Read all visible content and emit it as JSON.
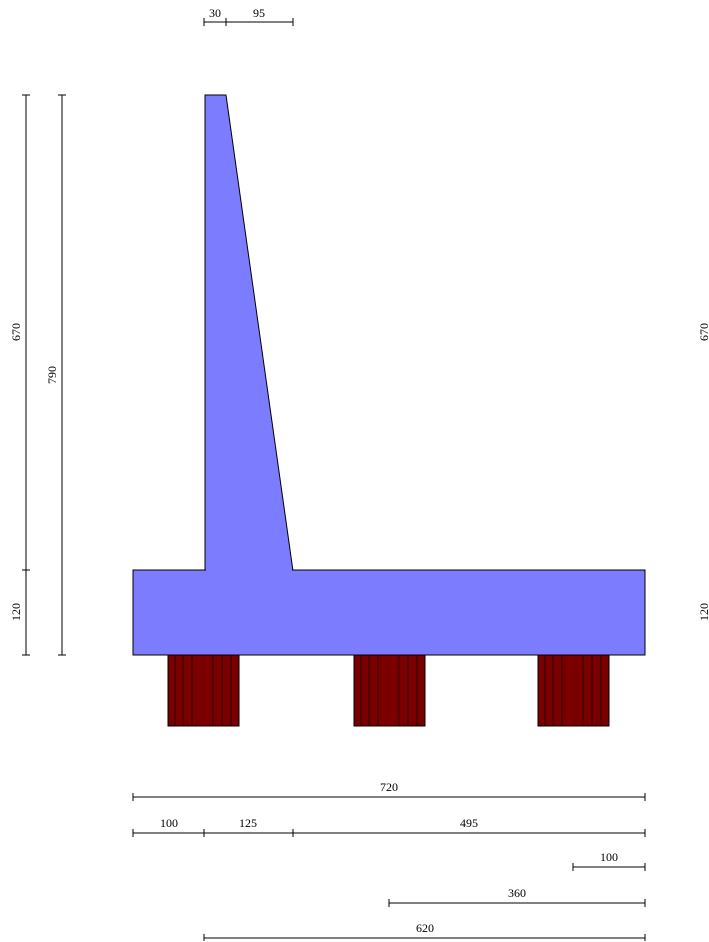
{
  "colors": {
    "concrete": "#7b7cff",
    "piles": "#7a0000",
    "lines": "#000000"
  },
  "dimensions": {
    "top_left": "30",
    "top_right": "95",
    "left_stem": "670",
    "left_base": "120",
    "left_total": "790",
    "right_stem": "670",
    "right_base": "120",
    "total_width": "720",
    "seg_toe": "100",
    "seg_stem": "125",
    "seg_heel": "495",
    "pile_edge": "100",
    "pile_mid": "360",
    "pile_span": "620"
  }
}
